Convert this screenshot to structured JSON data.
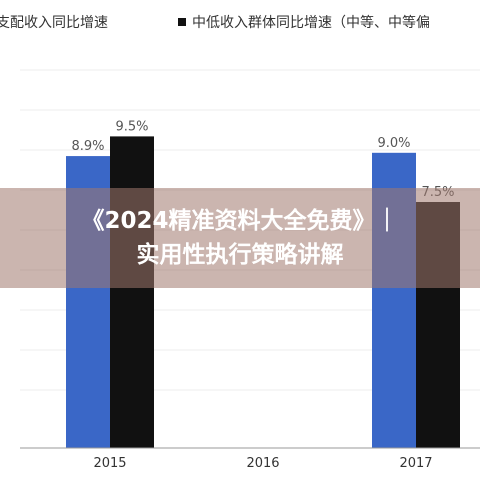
{
  "legend": {
    "items": [
      {
        "label": "可支配收入同比增速",
        "color": "#3a67c7"
      },
      {
        "label": "中低收入群体同比增速（中等、中等偏",
        "color": "#111111"
      }
    ]
  },
  "banner": {
    "line1": "《2024精准资料大全免费》｜",
    "line2": "实用性执行策略讲解"
  },
  "chart_data": {
    "type": "bar",
    "categories": [
      "2015",
      "2016",
      "2017"
    ],
    "series": [
      {
        "name": "可支配收入同比增速",
        "values": [
          8.9,
          null,
          9.0
        ],
        "labels": [
          "8.9%",
          "",
          "9.0%"
        ],
        "color": "#3a67c7"
      },
      {
        "name": "中低收入群体同比增速（中等、中等偏",
        "values": [
          9.5,
          null,
          7.5
        ],
        "labels": [
          "9.5%",
          "",
          "7.5%"
        ],
        "color": "#111111"
      }
    ],
    "grid": true,
    "legend": "top"
  }
}
